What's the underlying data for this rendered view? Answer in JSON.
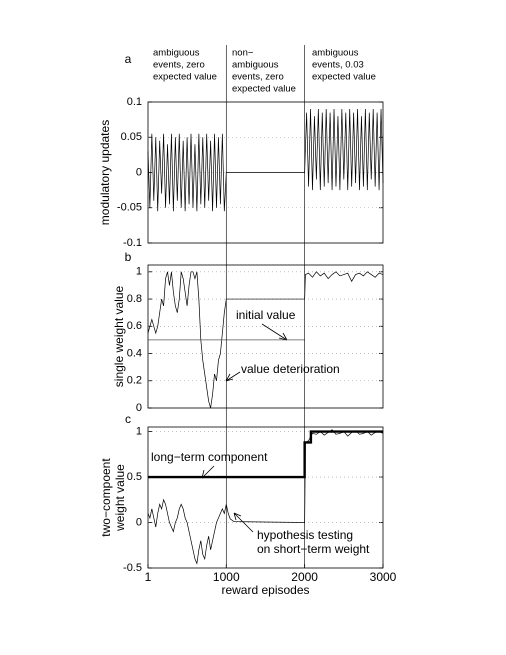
{
  "chart_data": [
    {
      "type": "line",
      "label": "a",
      "ylabel": [
        "modulatory updates"
      ],
      "headers": [
        [
          "ambiguous",
          "events, zero",
          "expected value"
        ],
        [
          "non−",
          "ambiguous",
          "events, zero",
          "expected value"
        ],
        [
          "ambiguous",
          "events, 0.03",
          "expected value"
        ]
      ],
      "xlim": [
        1,
        3000
      ],
      "ylim": [
        -0.1,
        0.1
      ],
      "yticks": [
        -0.1,
        -0.05,
        0,
        0.05,
        0.1
      ],
      "grid": true,
      "series": [
        {
          "color": "#000000",
          "x": [
            1,
            25,
            50,
            75,
            100,
            125,
            150,
            175,
            200,
            225,
            250,
            275,
            300,
            325,
            350,
            375,
            400,
            425,
            450,
            475,
            500,
            525,
            550,
            575,
            600,
            625,
            650,
            675,
            700,
            725,
            750,
            775,
            800,
            825,
            850,
            875,
            900,
            925,
            950,
            975,
            1000,
            1500,
            2000,
            2025,
            2050,
            2075,
            2100,
            2125,
            2150,
            2175,
            2200,
            2225,
            2250,
            2275,
            2300,
            2325,
            2350,
            2375,
            2400,
            2425,
            2450,
            2475,
            2500,
            2525,
            2550,
            2575,
            2600,
            2625,
            2650,
            2675,
            2700,
            2725,
            2750,
            2775,
            2800,
            2825,
            2850,
            2875,
            2900,
            2925,
            2950,
            2975,
            3000
          ],
          "values": [
            0.03,
            -0.05,
            0.055,
            -0.04,
            0.05,
            -0.055,
            0.045,
            -0.03,
            0.055,
            -0.05,
            0.04,
            -0.045,
            0.055,
            -0.055,
            0.05,
            -0.04,
            0.055,
            -0.05,
            0.045,
            -0.055,
            0.05,
            -0.045,
            0.055,
            -0.05,
            0.04,
            -0.055,
            0.055,
            -0.045,
            0.05,
            -0.05,
            0.055,
            -0.04,
            0.045,
            -0.055,
            0.055,
            -0.05,
            0.05,
            -0.045,
            0.055,
            -0.055,
            0,
            0,
            0,
            0.085,
            -0.02,
            0.09,
            -0.025,
            0.08,
            -0.01,
            0.09,
            -0.025,
            0.085,
            -0.02,
            0.09,
            -0.015,
            0.085,
            -0.025,
            0.09,
            -0.02,
            0.08,
            -0.025,
            0.09,
            -0.01,
            0.085,
            -0.025,
            0.09,
            -0.02,
            0.085,
            -0.015,
            0.09,
            -0.025,
            0.08,
            -0.02,
            0.09,
            -0.025,
            0.085,
            -0.01,
            0.09,
            -0.02,
            0.085,
            -0.025,
            0.09,
            -0.015
          ]
        }
      ]
    },
    {
      "type": "line",
      "label": "b",
      "ylabel": [
        "single weight value"
      ],
      "annotations": [
        [
          "initial value"
        ],
        [
          "value deterioration"
        ]
      ],
      "xlim": [
        1,
        3000
      ],
      "ylim": [
        0,
        1.05
      ],
      "yticks": [
        0,
        0.2,
        0.4,
        0.6,
        0.8,
        1
      ],
      "grid": true,
      "series": [
        {
          "color": "#000000",
          "x": [
            1,
            25,
            50,
            75,
            100,
            125,
            150,
            175,
            200,
            225,
            250,
            275,
            300,
            325,
            350,
            375,
            400,
            425,
            450,
            475,
            500,
            525,
            550,
            575,
            600,
            625,
            650,
            675,
            700,
            725,
            750,
            775,
            800,
            825,
            850,
            875,
            900,
            925,
            950,
            975,
            1000,
            2000,
            2010,
            2050,
            2100,
            2150,
            2200,
            2250,
            2300,
            2350,
            2400,
            2450,
            2500,
            2550,
            2600,
            2650,
            2700,
            2750,
            2800,
            2850,
            2900,
            2950,
            3000
          ],
          "values": [
            0.55,
            0.6,
            0.65,
            0.6,
            0.55,
            0.6,
            0.7,
            0.8,
            0.75,
            0.95,
            1,
            0.9,
            1,
            0.85,
            0.75,
            0.7,
            0.8,
            1,
            0.95,
            0.85,
            0.75,
            0.9,
            1,
            1,
            0.95,
            1,
            0.8,
            0.5,
            0.35,
            0.25,
            0.15,
            0.05,
            0,
            0.1,
            0.25,
            0.2,
            0.35,
            0.4,
            0.55,
            0.7,
            0.8,
            0.8,
            0.98,
            0.99,
            0.96,
            1,
            0.97,
            0.99,
            0.95,
            0.98,
            1,
            0.97,
            0.98,
            0.99,
            0.93,
            0.98,
            0.99,
            0.97,
            1,
            0.98,
            0.96,
            0.99,
            0.98
          ]
        },
        {
          "color": "#555555",
          "x": [
            1,
            2000
          ],
          "values": [
            0.5,
            0.5
          ]
        }
      ]
    },
    {
      "type": "line",
      "label": "c",
      "ylabel": [
        "two−compoent",
        "weight value"
      ],
      "xlabel": "reward episodes",
      "annotations": [
        [
          "long−term component"
        ],
        [
          "hypothesis testing",
          "on short−term weight"
        ]
      ],
      "xlim": [
        1,
        3000
      ],
      "xticks": [
        1,
        1000,
        2000,
        3000
      ],
      "ylim": [
        -0.5,
        1.05
      ],
      "yticks": [
        -0.5,
        0,
        0.5,
        1
      ],
      "grid": true,
      "series": [
        {
          "color": "#000000",
          "x": [
            1,
            25,
            50,
            75,
            100,
            125,
            150,
            175,
            200,
            225,
            250,
            275,
            300,
            325,
            350,
            375,
            400,
            425,
            450,
            475,
            500,
            525,
            550,
            575,
            600,
            625,
            650,
            675,
            700,
            725,
            750,
            775,
            800,
            825,
            850,
            875,
            900,
            925,
            950,
            975,
            1000,
            1025,
            1050,
            1100,
            2000,
            2010,
            2050,
            2100,
            2150,
            2200,
            2250,
            2300,
            2350,
            2400,
            2450,
            2500,
            2550,
            2600,
            2650,
            2700,
            2750,
            2800,
            2850,
            2900,
            2950,
            3000
          ],
          "values": [
            0.1,
            0.05,
            0.15,
            0.05,
            -0.05,
            0.1,
            0.2,
            0.15,
            0.25,
            0.2,
            0.1,
            0,
            -0.05,
            -0.1,
            0,
            0.05,
            0.15,
            0.2,
            0.15,
            0.05,
            0,
            -0.1,
            -0.2,
            -0.3,
            -0.4,
            -0.45,
            -0.3,
            -0.2,
            -0.35,
            -0.4,
            -0.25,
            -0.15,
            -0.3,
            -0.2,
            -0.1,
            0,
            0.05,
            0.1,
            0.15,
            0.1,
            0.2,
            0.1,
            0.04,
            0.01,
            0,
            0.88,
            0.9,
            0.98,
            0.97,
            1,
            0.96,
            0.99,
            1.02,
            0.97,
            0.98,
            1,
            0.95,
            0.99,
            1.01,
            0.97,
            0.98,
            1,
            0.96,
            0.99,
            1,
            0.98
          ]
        },
        {
          "color": "#000000",
          "thick": true,
          "x": [
            1,
            2000,
            2000,
            2080,
            2080,
            3000
          ],
          "values": [
            0.5,
            0.5,
            0.88,
            0.88,
            1,
            1
          ]
        }
      ]
    }
  ]
}
